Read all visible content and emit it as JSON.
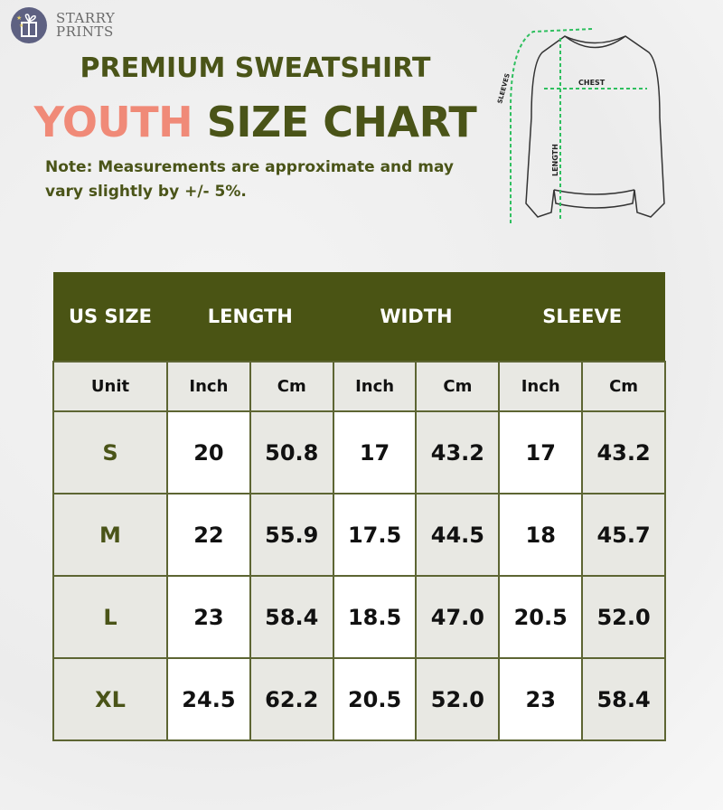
{
  "brand": {
    "name_line1": "STARRY",
    "name_line2": "PRINTS",
    "logo_icon": "gift-box-stars-icon",
    "color": "#5e6182"
  },
  "title": {
    "line1": "PREMIUM SWEATSHIRT",
    "highlight": "YOUTH",
    "rest": "SIZE CHART",
    "color": "#4a5418",
    "highlight_color": "#f08a78"
  },
  "note": "Note: Measurements are approximate and may vary slightly by +/- 5%.",
  "diagram": {
    "labels": {
      "chest": "CHEST",
      "length": "LENGTH",
      "sleeves": "SLEEVES"
    },
    "arrow_color": "#2fbf5f"
  },
  "table": {
    "header_color": "#4a5414",
    "headers": [
      "US SIZE",
      "LENGTH",
      "WIDTH",
      "SLEEVE"
    ],
    "units": [
      "Unit",
      "Inch",
      "Cm",
      "Inch",
      "Cm",
      "Inch",
      "Cm"
    ],
    "rows": [
      [
        "S",
        "20",
        "50.8",
        "17",
        "43.2",
        "17",
        "43.2"
      ],
      [
        "M",
        "22",
        "55.9",
        "17.5",
        "44.5",
        "18",
        "45.7"
      ],
      [
        "L",
        "23",
        "58.4",
        "18.5",
        "47.0",
        "20.5",
        "52.0"
      ],
      [
        "XL",
        "24.5",
        "62.2",
        "20.5",
        "52.0",
        "23",
        "58.4"
      ]
    ]
  }
}
